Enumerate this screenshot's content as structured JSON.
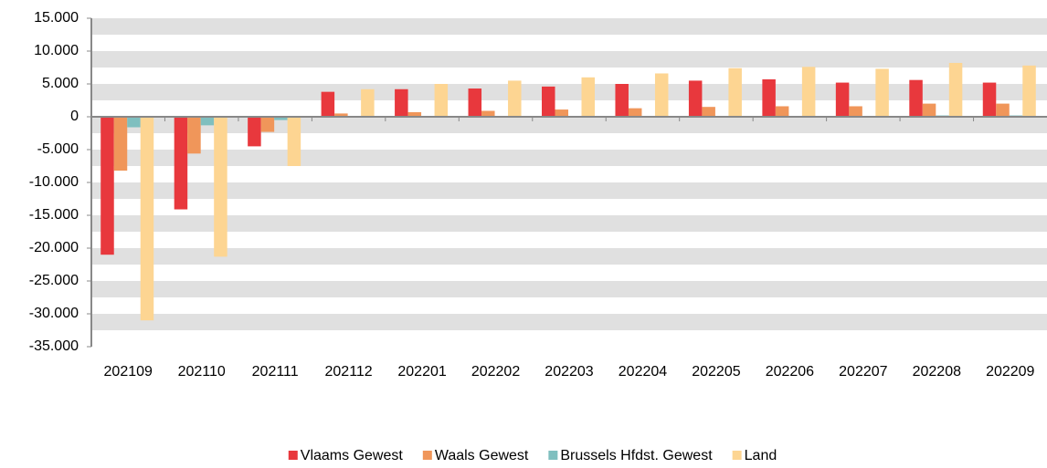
{
  "chart_data": {
    "type": "bar",
    "categories": [
      "202109",
      "202110",
      "202111",
      "202112",
      "202201",
      "202202",
      "202203",
      "202204",
      "202205",
      "202206",
      "202207",
      "202208",
      "202209"
    ],
    "series": [
      {
        "name": "Vlaams Gewest",
        "color": "#e8383d",
        "values": [
          -21000,
          -14100,
          -4500,
          3800,
          4200,
          4300,
          4600,
          5000,
          5500,
          5700,
          5200,
          5600,
          5200
        ]
      },
      {
        "name": "Waals Gewest",
        "color": "#f0965a",
        "values": [
          -8200,
          -5600,
          -2300,
          500,
          700,
          900,
          1100,
          1300,
          1500,
          1600,
          1600,
          2000,
          2000
        ]
      },
      {
        "name": "Brussels Hfdst. Gewest",
        "color": "#7fbfbf",
        "values": [
          -1600,
          -1300,
          -500,
          100,
          100,
          100,
          100,
          100,
          100,
          100,
          100,
          200,
          200
        ]
      },
      {
        "name": "Land",
        "color": "#fdd592",
        "values": [
          -31000,
          -21300,
          -7500,
          4200,
          5000,
          5500,
          6000,
          6600,
          7400,
          7600,
          7300,
          8200,
          7800
        ]
      }
    ],
    "ylim": [
      -35000,
      15000
    ],
    "yticks": [
      {
        "value": -35000,
        "label": "-35.000"
      },
      {
        "value": -30000,
        "label": "-30.000"
      },
      {
        "value": -25000,
        "label": "-25.000"
      },
      {
        "value": -20000,
        "label": "-20.000"
      },
      {
        "value": -15000,
        "label": "-15.000"
      },
      {
        "value": -10000,
        "label": "-10.000"
      },
      {
        "value": -5000,
        "label": "-5.000"
      },
      0,
      {
        "value": 5000,
        "label": "5.000"
      },
      {
        "value": 10000,
        "label": "10.000"
      },
      {
        "value": 15000,
        "label": "15.000"
      }
    ],
    "grid": true,
    "legend": "bottom"
  }
}
